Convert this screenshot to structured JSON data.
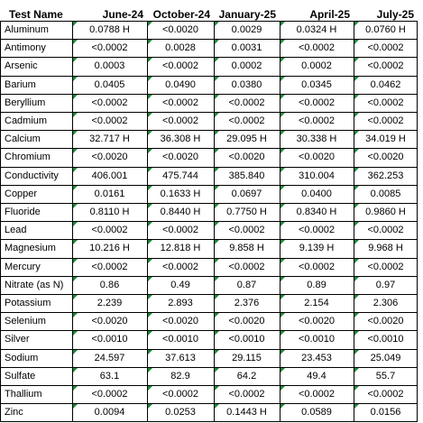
{
  "headers": {
    "name": "Test Name",
    "cols": [
      "June-24",
      "October-24",
      "January-25",
      "April-25",
      "July-25"
    ]
  },
  "rows": [
    {
      "name": "Aluminum",
      "values": [
        "0.0788 H",
        "<0.0020",
        "0.0029",
        "0.0324 H",
        "0.0760 H"
      ]
    },
    {
      "name": "Antimony",
      "values": [
        "<0.0002",
        "0.0028",
        "0.0031",
        "<0.0002",
        "<0.0002"
      ]
    },
    {
      "name": "Arsenic",
      "values": [
        "0.0003",
        "<0.0002",
        "0.0002",
        "0.0002",
        "<0.0002"
      ]
    },
    {
      "name": "Barium",
      "values": [
        "0.0405",
        "0.0490",
        "0.0380",
        "0.0345",
        "0.0462"
      ]
    },
    {
      "name": "Beryllium",
      "values": [
        "<0.0002",
        "<0.0002",
        "<0.0002",
        "<0.0002",
        "<0.0002"
      ]
    },
    {
      "name": "Cadmium",
      "values": [
        "<0.0002",
        "<0.0002",
        "<0.0002",
        "<0.0002",
        "<0.0002"
      ]
    },
    {
      "name": "Calcium",
      "values": [
        "32.717 H",
        "36.308 H",
        "29.095 H",
        "30.338 H",
        "34.019 H"
      ]
    },
    {
      "name": "Chromium",
      "values": [
        "<0.0020",
        "<0.0020",
        "<0.0020",
        "<0.0020",
        "<0.0020"
      ]
    },
    {
      "name": "Conductivity",
      "values": [
        "406.001",
        "475.744",
        "385.840",
        "310.004",
        "362.253"
      ]
    },
    {
      "name": "Copper",
      "values": [
        "0.0161",
        "0.1633 H",
        "0.0697",
        "0.0400",
        "0.0085"
      ]
    },
    {
      "name": "Fluoride",
      "values": [
        "0.8110 H",
        "0.8440 H",
        "0.7750 H",
        "0.8340 H",
        "0.9860 H"
      ]
    },
    {
      "name": "Lead",
      "values": [
        "<0.0002",
        "<0.0002",
        "<0.0002",
        "<0.0002",
        "<0.0002"
      ]
    },
    {
      "name": "Magnesium",
      "values": [
        "10.216 H",
        "12.818 H",
        "9.858 H",
        "9.139 H",
        "9.968 H"
      ]
    },
    {
      "name": "Mercury",
      "values": [
        "<0.0002",
        "<0.0002",
        "<0.0002",
        "<0.0002",
        "<0.0002"
      ]
    },
    {
      "name": "Nitrate (as N)",
      "values": [
        "0.86",
        "0.49",
        "0.87",
        "0.89",
        "0.97"
      ]
    },
    {
      "name": "Potassium",
      "values": [
        "2.239",
        "2.893",
        "2.376",
        "2.154",
        "2.306"
      ]
    },
    {
      "name": "Selenium",
      "values": [
        "<0.0020",
        "<0.0020",
        "<0.0020",
        "<0.0020",
        "<0.0020"
      ]
    },
    {
      "name": "Silver",
      "values": [
        "<0.0010",
        "<0.0010",
        "<0.0010",
        "<0.0010",
        "<0.0010"
      ]
    },
    {
      "name": "Sodium",
      "values": [
        "24.597",
        "37.613",
        "29.115",
        "23.453",
        "25.049"
      ]
    },
    {
      "name": "Sulfate",
      "values": [
        "63.1",
        "82.9",
        "64.2",
        "49.4",
        "55.7"
      ]
    },
    {
      "name": "Thallium",
      "values": [
        "<0.0002",
        "<0.0002",
        "<0.0002",
        "<0.0002",
        "<0.0002"
      ]
    },
    {
      "name": "Zinc",
      "values": [
        "0.0094",
        "0.0253",
        "0.1443 H",
        "0.0589",
        "0.0156"
      ]
    }
  ],
  "colors": {
    "grid": "#000000",
    "flag": "#1b8a3a"
  }
}
